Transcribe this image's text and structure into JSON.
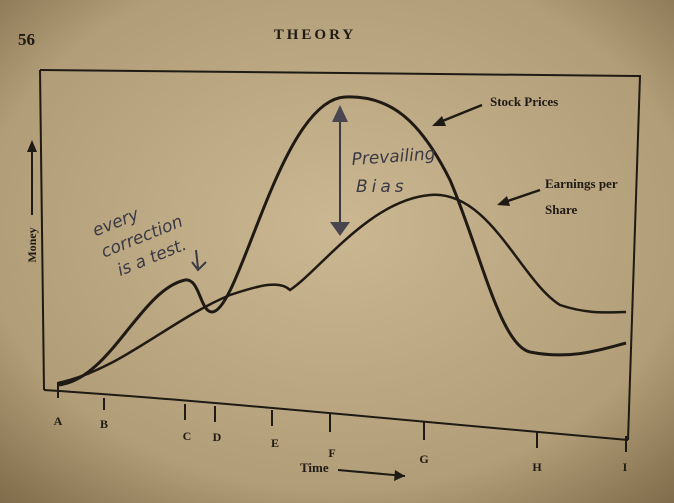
{
  "header": {
    "page_number": "56",
    "title": "THEORY"
  },
  "figure": {
    "y_axis_label": "Money",
    "x_axis_label": "Time",
    "curve_labels": [
      [
        "Stock Prices"
      ],
      [
        "Earnings per",
        "Share"
      ]
    ],
    "time_points": [
      "A",
      "B",
      "C",
      "D",
      "E",
      "F",
      "G",
      "H",
      "I"
    ],
    "annotations": {
      "correction_note": [
        "every",
        "correction",
        "is a test."
      ],
      "bias_note": [
        "Prevailing",
        "Bias"
      ]
    }
  }
}
